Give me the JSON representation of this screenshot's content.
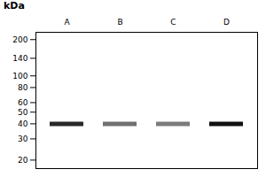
{
  "chart_data": {
    "type": "gel",
    "ylabel": "kDa",
    "categories": [
      "A",
      "B",
      "C",
      "D"
    ],
    "values": [
      40,
      40,
      40,
      40
    ],
    "intensities": [
      0.9,
      0.6,
      0.55,
      1.0
    ],
    "color": "#111111",
    "log": "y",
    "ylim": [
      17,
      230
    ],
    "yticks": [
      200,
      140,
      100,
      80,
      60,
      50,
      40,
      30,
      20
    ]
  }
}
